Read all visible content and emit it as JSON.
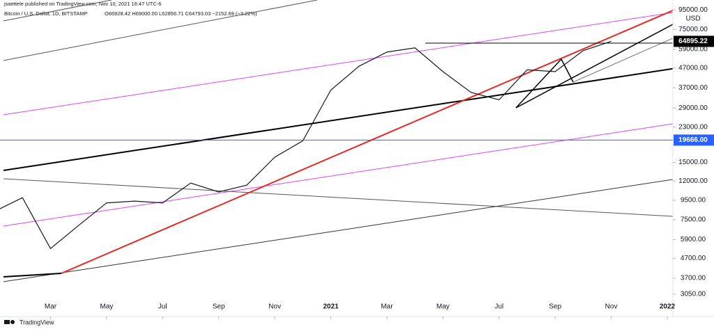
{
  "chart_data": {
    "type": "line",
    "title": "Bitcoin / U.S. Dollar, 1D, BITSTAMP",
    "published": "jsaettele published on TradingView.com, Nov 10, 2021 16:47 UTC-6",
    "ohlc_text": "O66928.42 H69000.00 L62856.71 C64793.03 −2152.69 (−3.22%)",
    "currency": "USD",
    "brand": "TradingView",
    "x": [
      "2020-01",
      "2020-02",
      "2020-03",
      "2020-04",
      "2020-05",
      "2020-06",
      "2020-07",
      "2020-08",
      "2020-09",
      "2020-10",
      "2020-11",
      "2020-12",
      "2021-01",
      "2021-02",
      "2021-03",
      "2021-04",
      "2021-05",
      "2021-06",
      "2021-07",
      "2021-08",
      "2021-09",
      "2021-10",
      "2021-11"
    ],
    "series": [
      {
        "name": "BTCUSD",
        "color": "#131722",
        "values": [
          8300,
          9800,
          5300,
          7000,
          9200,
          9400,
          9200,
          11700,
          10500,
          11400,
          16000,
          19500,
          36000,
          48000,
          57000,
          60000,
          45000,
          35000,
          32000,
          46000,
          45000,
          58000,
          64895.22
        ]
      }
    ],
    "xlim": [
      "2020-01",
      "2022-01"
    ],
    "xticks": [
      {
        "value": "2020-03",
        "label": "Mar"
      },
      {
        "value": "2020-05",
        "label": "May"
      },
      {
        "value": "2020-07",
        "label": "Jul"
      },
      {
        "value": "2020-09",
        "label": "Sep"
      },
      {
        "value": "2020-11",
        "label": "Nov"
      },
      {
        "value": "2021-01",
        "label": "2021"
      },
      {
        "value": "2021-03",
        "label": "Mar"
      },
      {
        "value": "2021-05",
        "label": "May"
      },
      {
        "value": "2021-07",
        "label": "Jul"
      },
      {
        "value": "2021-09",
        "label": "Sep"
      },
      {
        "value": "2021-11",
        "label": "Nov"
      },
      {
        "value": "2022-01",
        "label": "2022"
      }
    ],
    "ylim": [
      2330,
      107000
    ],
    "log_scale": true,
    "grid": false,
    "yticks": [
      {
        "value": 95000,
        "label": "95000.00"
      },
      {
        "value": 75000,
        "label": "75000.00"
      },
      {
        "value": 59000,
        "label": "59000.00"
      },
      {
        "value": 47000,
        "label": "47000.00"
      },
      {
        "value": 37000,
        "label": "37000.00"
      },
      {
        "value": 29000,
        "label": "29000.00"
      },
      {
        "value": 23000,
        "label": "23000.00"
      },
      {
        "value": 15000,
        "label": "15000.00"
      },
      {
        "value": 12000,
        "label": "12000.00"
      },
      {
        "value": 9500,
        "label": "9500.00"
      },
      {
        "value": 7500,
        "label": "7500.00"
      },
      {
        "value": 5900,
        "label": "5900.00"
      },
      {
        "value": 4700,
        "label": "4700.00"
      },
      {
        "value": 3700,
        "label": "3700.00"
      },
      {
        "value": 3050,
        "label": "3050.00"
      }
    ],
    "price_labels": [
      {
        "value": 64895.22,
        "label": "64895.22",
        "color": "#000000"
      },
      {
        "value": 19666,
        "label": "19666.00",
        "color": "#2962ff"
      }
    ]
  }
}
